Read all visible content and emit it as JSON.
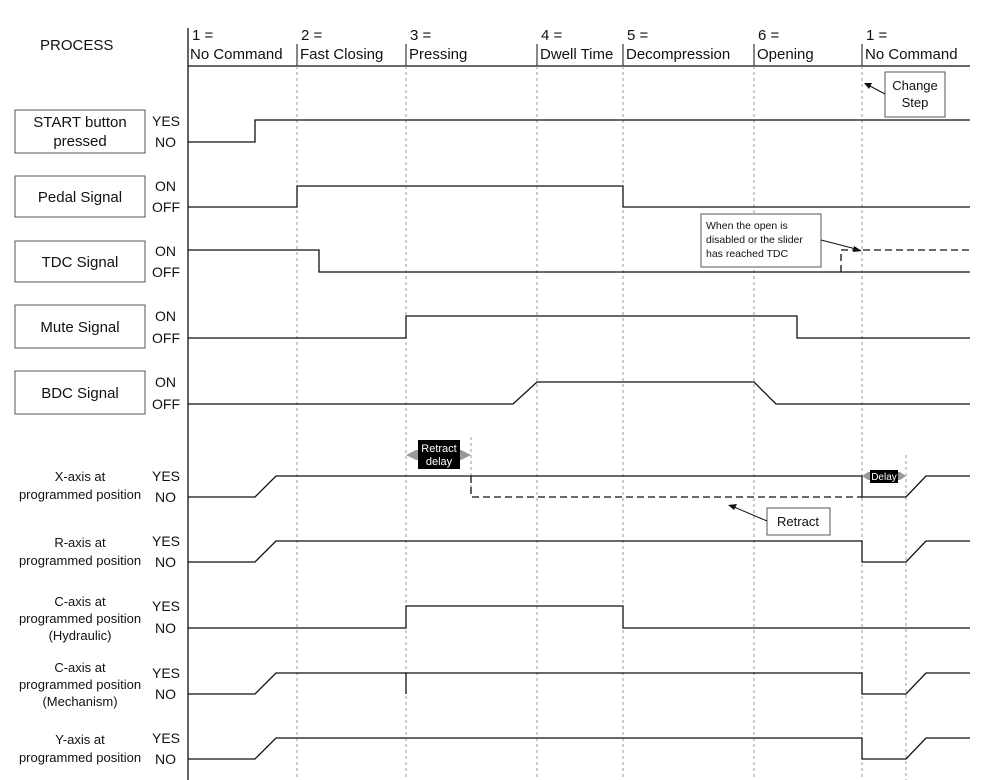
{
  "header": {
    "process_label": "PROCESS"
  },
  "steps": [
    {
      "num": "1 =",
      "name": "No Command"
    },
    {
      "num": "2 =",
      "name": "Fast Closing"
    },
    {
      "num": "3 =",
      "name": "Pressing"
    },
    {
      "num": "4 =",
      "name": "Dwell Time"
    },
    {
      "num": "5 =",
      "name": "Decompression"
    },
    {
      "num": "6 =",
      "name": "Opening"
    },
    {
      "num": "1 =",
      "name": "No Command"
    }
  ],
  "signals": [
    {
      "label": [
        "START button",
        "pressed"
      ],
      "high": "YES",
      "low": "NO"
    },
    {
      "label": [
        "Pedal Signal"
      ],
      "high": "ON",
      "low": "OFF"
    },
    {
      "label": [
        "TDC Signal"
      ],
      "high": "ON",
      "low": "OFF"
    },
    {
      "label": [
        "Mute Signal"
      ],
      "high": "ON",
      "low": "OFF"
    },
    {
      "label": [
        "BDC Signal"
      ],
      "high": "ON",
      "low": "OFF"
    },
    {
      "label": [
        "X-axis at",
        "programmed position"
      ],
      "high": "YES",
      "low": "NO"
    },
    {
      "label": [
        "R-axis at",
        "programmed position"
      ],
      "high": "YES",
      "low": "NO"
    },
    {
      "label": [
        "C-axis at",
        "programmed position",
        "(Hydraulic)"
      ],
      "high": "YES",
      "low": "NO"
    },
    {
      "label": [
        "C-axis at",
        "programmed position",
        "(Mechanism)"
      ],
      "high": "YES",
      "low": "NO"
    },
    {
      "label": [
        "Y-axis at",
        "programmed position"
      ],
      "high": "YES",
      "low": "NO"
    }
  ],
  "annotations": {
    "change_step": [
      "Change",
      "Step"
    ],
    "tdc_note": [
      "When the open is",
      "disabled or the slider",
      "has reached TDC"
    ],
    "retract_delay": [
      "Retract",
      "delay"
    ],
    "delay": "Delay",
    "retract": "Retract"
  }
}
